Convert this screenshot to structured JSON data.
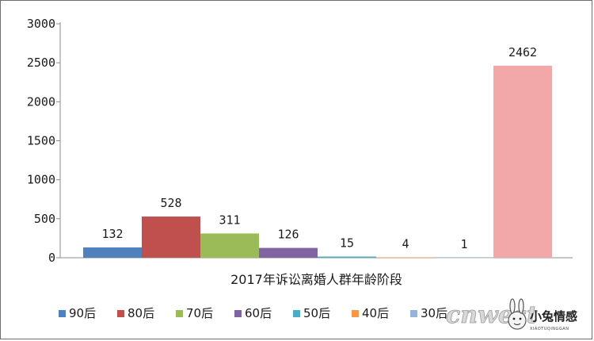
{
  "chart_data": {
    "type": "bar",
    "title": "",
    "xlabel": "",
    "ylabel": "",
    "categories": [
      "2017年诉讼离婚人群年龄阶段"
    ],
    "ylim": [
      0,
      3000
    ],
    "yticks": [
      "0",
      "500",
      "1000",
      "1500",
      "2000",
      "2500",
      "3000"
    ],
    "grid": false,
    "legend_position": "bottom",
    "series": [
      {
        "name": "90后",
        "values": [
          132
        ],
        "color": "#4f81bd"
      },
      {
        "name": "80后",
        "values": [
          528
        ],
        "color": "#c0504d"
      },
      {
        "name": "70后",
        "values": [
          311
        ],
        "color": "#9bbb59"
      },
      {
        "name": "60后",
        "values": [
          126
        ],
        "color": "#8064a2"
      },
      {
        "name": "50后",
        "values": [
          15
        ],
        "color": "#4bacc6"
      },
      {
        "name": "40后",
        "values": [
          4
        ],
        "color": "#f79646"
      },
      {
        "name": "30后",
        "values": [
          1
        ],
        "color": "#95b3d7"
      },
      {
        "name": "",
        "values": [
          2462
        ],
        "color": "#f2a7a8"
      }
    ]
  },
  "watermark": {
    "logo_text": "cnwest",
    "brand": "小兔情感",
    "brand_small": "XIAOTUQINGGAN"
  }
}
